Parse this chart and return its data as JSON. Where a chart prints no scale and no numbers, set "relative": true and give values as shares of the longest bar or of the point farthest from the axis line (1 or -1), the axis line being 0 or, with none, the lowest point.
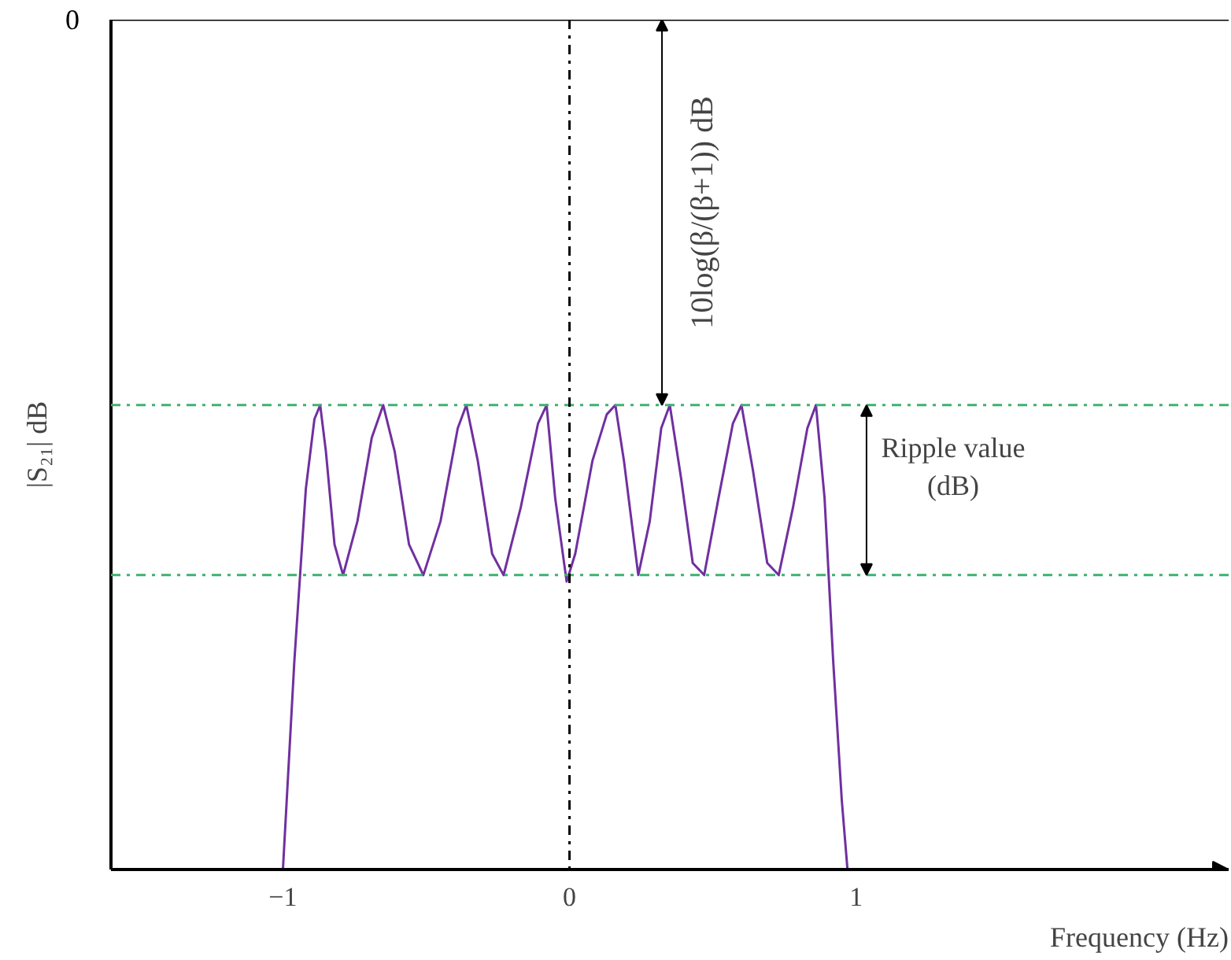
{
  "chart_data": {
    "type": "line",
    "relative": true,
    "xlabel": "Frequency (Hz)",
    "ylabel": "|S₂₁| dB",
    "xlim": [
      -1.6,
      2.3
    ],
    "xticks": [
      -1,
      0,
      1
    ],
    "series": [
      {
        "color": "#7030a0",
        "x": [
          -1.0,
          -0.96,
          -0.92,
          -0.89,
          -0.87,
          -0.85,
          -0.82,
          -0.79,
          -0.74,
          -0.69,
          -0.65,
          -0.61,
          -0.56,
          -0.51,
          -0.45,
          -0.39,
          -0.36,
          -0.32,
          -0.27,
          -0.23,
          -0.17,
          -0.11,
          -0.08,
          -0.05,
          -0.01,
          0.02,
          0.08,
          0.13,
          0.16,
          0.19,
          0.24,
          0.28,
          0.32,
          0.35,
          0.39,
          0.43,
          0.47,
          0.52,
          0.57,
          0.6,
          0.64,
          0.69,
          0.73,
          0.78,
          0.83,
          0.86,
          0.89,
          0.92,
          0.95,
          0.97
        ],
        "values": [
          0,
          0.45,
          0.82,
          0.97,
          1,
          0.9,
          0.7,
          0.634,
          0.75,
          0.93,
          1,
          0.9,
          0.7,
          0.634,
          0.75,
          0.95,
          1,
          0.88,
          0.68,
          0.634,
          0.78,
          0.96,
          1,
          0.8,
          0.62,
          0.68,
          0.88,
          0.98,
          1,
          0.88,
          0.634,
          0.75,
          0.95,
          1,
          0.84,
          0.66,
          0.634,
          0.8,
          0.96,
          1,
          0.86,
          0.66,
          0.634,
          0.78,
          0.95,
          1,
          0.8,
          0.45,
          0.15,
          0
        ]
      }
    ],
    "ref_lines": [
      {
        "axis": "y",
        "value": 1.83,
        "color": "#000000",
        "line_style": "solid"
      },
      {
        "axis": "y",
        "value": 1,
        "color": "#3cb371",
        "line_style": "dashdot"
      },
      {
        "axis": "y",
        "value": 0.634,
        "color": "#3cb371",
        "line_style": "dashdot"
      },
      {
        "axis": "x",
        "value": 0,
        "color": "#000000",
        "line_style": "dashdot"
      }
    ],
    "annotations": [
      "0",
      "10log(β/(β+1)) dB",
      "Ripple value\n(dB)"
    ],
    "grid": false
  }
}
